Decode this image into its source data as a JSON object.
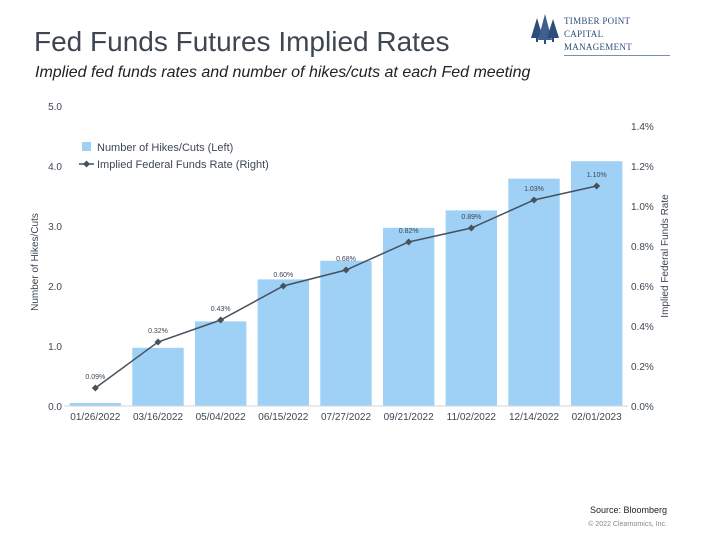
{
  "header": {
    "title": "Fed Funds Futures Implied Rates",
    "subtitle": "Implied fed funds rates and number of hikes/cuts at each Fed meeting"
  },
  "logo": {
    "line1": "TIMBER POINT",
    "line2": "CAPITAL MANAGEMENT",
    "icon": "pine-trees-icon",
    "color": "#2f4d7a"
  },
  "footer": {
    "source": "Source: Bloomberg",
    "copyright": "© 2022 Clearnomics, Inc."
  },
  "chart_data": {
    "type": "bar",
    "categories": [
      "01/26/2022",
      "03/16/2022",
      "05/04/2022",
      "06/15/2022",
      "07/27/2022",
      "09/21/2022",
      "11/02/2022",
      "12/14/2022",
      "02/01/2023"
    ],
    "series": [
      {
        "name": "Number of Hikes/Cuts (Left)",
        "type": "bar",
        "axis": "left",
        "color": "#9fd0f5",
        "values": [
          0.05,
          0.97,
          1.41,
          2.11,
          2.42,
          2.97,
          3.26,
          3.79,
          4.08
        ]
      },
      {
        "name": "Implied Federal Funds Rate (Right)",
        "type": "line",
        "axis": "right",
        "color": "#46525e",
        "values": [
          0.09,
          0.32,
          0.43,
          0.6,
          0.68,
          0.82,
          0.89,
          1.03,
          1.1
        ],
        "labels": [
          "0.09%",
          "0.32%",
          "0.43%",
          "0.60%",
          "0.68%",
          "0.82%",
          "0.89%",
          "1.03%",
          "1.10%"
        ]
      }
    ],
    "ylabel_left": "Number of Hikes/Cuts",
    "ylabel_right": "Implied Federal Funds Rate",
    "ylim_left": [
      0,
      5
    ],
    "ylim_right": [
      0,
      1.4
    ],
    "yticks_left": [
      "0.0",
      "1.0",
      "2.0",
      "3.0",
      "4.0",
      "5.0"
    ],
    "yticks_right": [
      "0.0%",
      "0.2%",
      "0.4%",
      "0.6%",
      "0.8%",
      "1.0%",
      "1.2%",
      "1.4%"
    ],
    "grid": false,
    "legend_position": "top-left"
  }
}
